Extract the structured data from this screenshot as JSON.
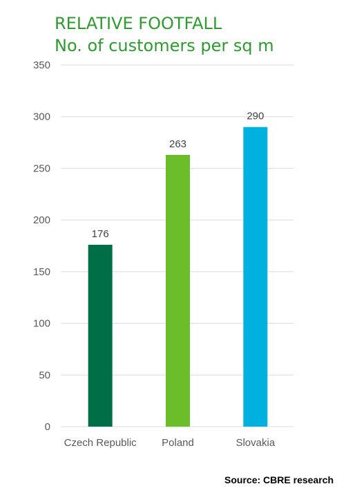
{
  "chart_data": {
    "type": "bar",
    "title": "RELATIVE FOOTFALL",
    "subtitle": "No. of customers per sq m",
    "categories": [
      "Czech Republic",
      "Poland",
      "Slovakia"
    ],
    "values": [
      176,
      263,
      290
    ],
    "data_labels": [
      "176",
      "263",
      "290"
    ],
    "colors": [
      "#006f47",
      "#6bbd2a",
      "#00b0df"
    ],
    "ylim": [
      0,
      350
    ],
    "yticks": [
      0,
      50,
      100,
      150,
      200,
      250,
      300,
      350
    ],
    "ytick_labels": [
      "0",
      "50",
      "100",
      "150",
      "200",
      "250",
      "300",
      "350"
    ],
    "grid": true,
    "xlabel": "",
    "ylabel": ""
  },
  "colors": {
    "title": "#2f9a2f",
    "gridline": "#d9d9d9",
    "axis_text": "#595959"
  },
  "source": "Source: CBRE research"
}
